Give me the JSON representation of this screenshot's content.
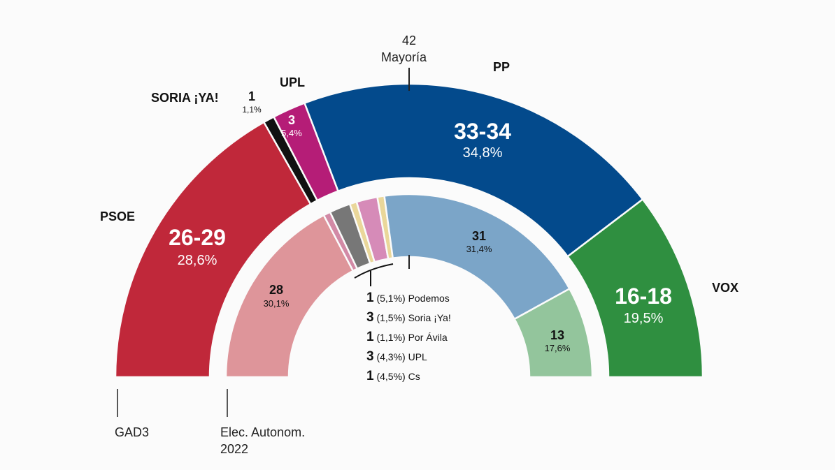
{
  "chart_data": {
    "type": "hemicycle",
    "majority": {
      "value": "42",
      "label": "Mayoría"
    },
    "rings": [
      {
        "name": "GAD3",
        "segments": [
          {
            "party": "PSOE",
            "seats": "26-29",
            "seats_mid": 27.5,
            "pct": "28,6%",
            "color": "#c0283a"
          },
          {
            "party": "SORIA ¡YA!",
            "seats": "1",
            "seats_mid": 1,
            "pct": "1,1%",
            "color": "#111111"
          },
          {
            "party": "UPL",
            "seats": "3",
            "seats_mid": 3,
            "pct": "5,4%",
            "color": "#b51d77"
          },
          {
            "party": "PP",
            "seats": "33-34",
            "seats_mid": 33.5,
            "pct": "34,8%",
            "color": "#034a8c"
          },
          {
            "party": "VOX",
            "seats": "16-18",
            "seats_mid": 17,
            "pct": "19,5%",
            "color": "#2f8f40"
          }
        ]
      },
      {
        "name": "Elec. Autonom. 2022",
        "segments": [
          {
            "party": "PSOE",
            "seats": "28",
            "seats_mid": 28,
            "pct": "30,1%",
            "color": "#de959a"
          },
          {
            "party": "Cs",
            "seats": "1",
            "seats_mid": 1,
            "pct": "4,5%",
            "color": "#d28aa6"
          },
          {
            "party": "UPL",
            "seats": "3",
            "seats_mid": 3,
            "pct": "4,3%",
            "color": "#777777"
          },
          {
            "party": "Por Ávila",
            "seats": "1",
            "seats_mid": 1,
            "pct": "1,1%",
            "color": "#ead79a"
          },
          {
            "party": "Soria ¡Ya!",
            "seats": "3",
            "seats_mid": 3,
            "pct": "1,5%",
            "color": "#d68bb8"
          },
          {
            "party": "Podemos",
            "seats": "1",
            "seats_mid": 1,
            "pct": "5,1%",
            "color": "#ead79a"
          },
          {
            "party": "PP",
            "seats": "31",
            "seats_mid": 31,
            "pct": "31,4%",
            "color": "#7ba5c8"
          },
          {
            "party": "VOX",
            "seats": "13",
            "seats_mid": 13,
            "pct": "17,6%",
            "color": "#93c59c"
          }
        ]
      }
    ],
    "small_parties_legend": [
      {
        "seats": "1",
        "pct": "(5,1%)",
        "name": "Podemos"
      },
      {
        "seats": "3",
        "pct": "(1,5%)",
        "name": "Soria ¡Ya!"
      },
      {
        "seats": "1",
        "pct": "(1,1%)",
        "name": "Por Ávila"
      },
      {
        "seats": "3",
        "pct": "(4,3%)",
        "name": "UPL"
      },
      {
        "seats": "1",
        "pct": "(4,5%)",
        "name": "Cs"
      }
    ],
    "ring_labels": {
      "outer": "GAD3",
      "inner_line1": "Elec. Autonom.",
      "inner_line2": "2022"
    }
  }
}
